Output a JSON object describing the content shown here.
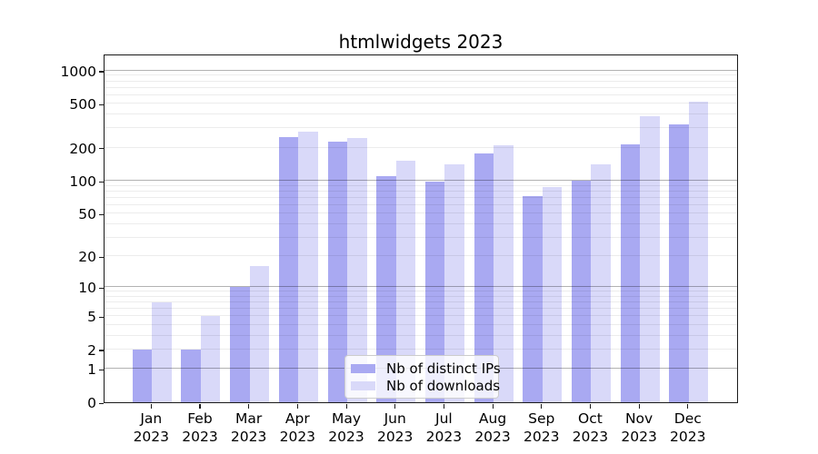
{
  "chart_data": {
    "type": "bar",
    "title": "htmlwidgets 2023",
    "year": "2023",
    "months": [
      "Jan",
      "Feb",
      "Mar",
      "Apr",
      "May",
      "Jun",
      "Jul",
      "Aug",
      "Sep",
      "Oct",
      "Nov",
      "Dec"
    ],
    "series": [
      {
        "name": "Nb of distinct IPs",
        "color": "#a9a9f2",
        "values": [
          2,
          2,
          10,
          252,
          226,
          111,
          98,
          176,
          73,
          101,
          214,
          328
        ]
      },
      {
        "name": "Nb of downloads",
        "color": "#d9d9f9",
        "values": [
          7,
          5,
          16,
          281,
          245,
          152,
          140,
          211,
          87,
          141,
          385,
          520
        ]
      }
    ],
    "yscale": "log1p",
    "yticks": [
      0,
      1,
      2,
      5,
      10,
      20,
      50,
      100,
      200,
      500,
      1000
    ],
    "ylim": [
      0,
      1450
    ],
    "grid": "horizontal (minor light, major dark at powers of 10), drawn over bars",
    "legend_position": "inside plot, lower center"
  }
}
